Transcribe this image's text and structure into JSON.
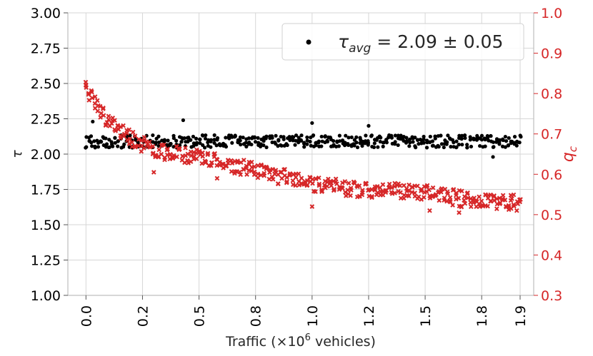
{
  "chart_data": {
    "type": "scatter",
    "xlabel_main": "Traffic (×10",
    "xlabel_exp": "6",
    "xlabel_tail": " vehicles)",
    "ylabel_left": "τ",
    "ylabel_right_main": "q",
    "ylabel_right_sub": "c",
    "xlim": [
      -0.08,
      1.98
    ],
    "ylim_left": [
      1.0,
      3.0
    ],
    "ylim_right": [
      0.3,
      1.0
    ],
    "x_ticks": [
      0.0,
      0.25,
      0.5,
      0.75,
      1.0,
      1.25,
      1.5,
      1.75,
      1.92
    ],
    "x_tick_labels": [
      "0.0",
      "0.2",
      "0.5",
      "0.8",
      "1.0",
      "1.2",
      "1.5",
      "1.8",
      "1.9"
    ],
    "y_left_ticks": [
      1.0,
      1.25,
      1.5,
      1.75,
      2.0,
      2.25,
      2.5,
      2.75,
      3.0
    ],
    "y_left_tick_labels": [
      "1.00",
      "1.25",
      "1.50",
      "1.75",
      "2.00",
      "2.25",
      "2.50",
      "2.75",
      "3.00"
    ],
    "y_right_ticks": [
      0.3,
      0.4,
      0.5,
      0.6,
      0.7,
      0.8,
      0.9,
      1.0
    ],
    "y_right_tick_labels": [
      "0.3",
      "0.4",
      "0.5",
      "0.6",
      "0.7",
      "0.8",
      "0.9",
      "1.0"
    ],
    "grid": true,
    "legend": {
      "placement": "top-right",
      "label_main": "τ",
      "label_sub": "avg",
      "label_tail": " = 2.09 ± 0.05"
    },
    "series": [
      {
        "axis": "left",
        "marker": "dot",
        "color": "#000000",
        "x_start": 0.0,
        "x_end": 1.92,
        "count": 150,
        "baseline": 2.09,
        "amplitude": 0.045,
        "outliers": [
          [
            0.03,
            2.23
          ],
          [
            0.43,
            2.24
          ],
          [
            1.0,
            2.22
          ],
          [
            1.25,
            2.2
          ],
          [
            1.8,
            1.98
          ]
        ]
      },
      {
        "axis": "right",
        "marker": "x",
        "color": "#d62728",
        "x_start": 0.0,
        "x_end": 1.92,
        "count": 150,
        "trend": [
          [
            0.0,
            0.81
          ],
          [
            0.1,
            0.73
          ],
          [
            0.2,
            0.69
          ],
          [
            0.3,
            0.66
          ],
          [
            0.5,
            0.64
          ],
          [
            0.75,
            0.61
          ],
          [
            1.0,
            0.575
          ],
          [
            1.25,
            0.56
          ],
          [
            1.5,
            0.555
          ],
          [
            1.75,
            0.53
          ],
          [
            1.92,
            0.53
          ]
        ],
        "amplitude": 0.02,
        "outliers": [
          [
            0.0,
            0.82
          ],
          [
            0.3,
            0.605
          ],
          [
            0.58,
            0.59
          ],
          [
            1.0,
            0.52
          ],
          [
            1.52,
            0.51
          ],
          [
            1.65,
            0.505
          ],
          [
            1.88,
            0.515
          ]
        ]
      }
    ]
  }
}
